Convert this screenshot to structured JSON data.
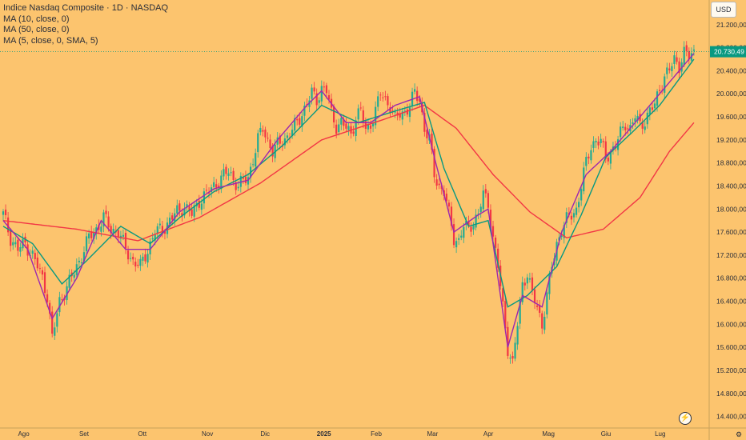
{
  "legend": {
    "title": "Indice Nasdaq Composite · 1D · NASDAQ",
    "ma1": "MA (10, close, 0)",
    "ma2": "MA (50, close, 0)",
    "ma3": "MA (5, close, 0, SMA, 5)"
  },
  "currency": "USD",
  "colors": {
    "background": "#fcc46e",
    "up": "#22ab94",
    "down": "#f23645",
    "ma10": "#089981",
    "ma50": "#f23645",
    "ma5": "#9c27b0",
    "price_label": "#089981"
  },
  "icons": {
    "settings": "gear-icon",
    "logo": "tradingview-logo-icon"
  },
  "chart_data": {
    "type": "candlestick",
    "title": "Indice Nasdaq Composite · 1D · NASDAQ",
    "currency": "USD",
    "y_ticks": [
      "21.200,00",
      "20.800,00",
      "20.400,00",
      "20.000,00",
      "19.600,00",
      "19.200,00",
      "18.800,00",
      "18.400,00",
      "18.000,00",
      "17.600,00",
      "17.200,00",
      "16.800,00",
      "16.400,00",
      "16.000,00",
      "15.600,00",
      "15.200,00",
      "14.800,00",
      "14.400,00"
    ],
    "x_ticks": [
      "Ago",
      "Set",
      "Ott",
      "Nov",
      "Dic",
      "2025",
      "Feb",
      "Mar",
      "Apr",
      "Mag",
      "Giu",
      "Lug"
    ],
    "last_price_label": "20.730,49",
    "last_price": 20730.49,
    "ylim": [
      14200,
      21350
    ],
    "series_close": [
      [
        0,
        17900
      ],
      [
        3,
        17500
      ],
      [
        6,
        17300
      ],
      [
        9,
        17400
      ],
      [
        12,
        17200
      ],
      [
        16,
        16800
      ],
      [
        18,
        16500
      ],
      [
        20,
        15750
      ],
      [
        23,
        16400
      ],
      [
        26,
        16650
      ],
      [
        29,
        16900
      ],
      [
        32,
        17200
      ],
      [
        35,
        17500
      ],
      [
        38,
        17650
      ],
      [
        41,
        17850
      ],
      [
        44,
        17650
      ],
      [
        47,
        17600
      ],
      [
        50,
        17300
      ],
      [
        53,
        17100
      ],
      [
        56,
        17000
      ],
      [
        59,
        17300
      ],
      [
        62,
        17600
      ],
      [
        65,
        17650
      ],
      [
        68,
        17800
      ],
      [
        71,
        17950
      ],
      [
        74,
        18050
      ],
      [
        77,
        17900
      ],
      [
        80,
        18150
      ],
      [
        84,
        18300
      ],
      [
        88,
        18500
      ],
      [
        92,
        18650
      ],
      [
        96,
        18400
      ],
      [
        100,
        18550
      ],
      [
        104,
        19200
      ],
      [
        106,
        19400
      ],
      [
        110,
        19000
      ],
      [
        113,
        19150
      ],
      [
        117,
        19300
      ],
      [
        120,
        19500
      ],
      [
        123,
        19750
      ],
      [
        126,
        20000
      ],
      [
        128,
        19900
      ],
      [
        130,
        20100
      ],
      [
        132,
        20050
      ],
      [
        134,
        19650
      ],
      [
        136,
        19450
      ],
      [
        138,
        19500
      ],
      [
        140,
        19400
      ],
      [
        142,
        19300
      ],
      [
        144,
        19600
      ],
      [
        146,
        19700
      ],
      [
        148,
        19350
      ],
      [
        150,
        19500
      ],
      [
        152,
        19700
      ],
      [
        154,
        20000
      ],
      [
        156,
        19900
      ],
      [
        158,
        19800
      ],
      [
        160,
        19550
      ],
      [
        162,
        19650
      ],
      [
        164,
        19700
      ],
      [
        166,
        19800
      ],
      [
        168,
        20000
      ],
      [
        170,
        19900
      ],
      [
        172,
        19400
      ],
      [
        174,
        19200
      ],
      [
        176,
        18600
      ],
      [
        178,
        18400
      ],
      [
        180,
        18300
      ],
      [
        182,
        17900
      ],
      [
        184,
        17500
      ],
      [
        186,
        17450
      ],
      [
        188,
        17700
      ],
      [
        190,
        17650
      ],
      [
        192,
        17800
      ],
      [
        194,
        17900
      ],
      [
        196,
        18250
      ],
      [
        198,
        18100
      ],
      [
        200,
        17500
      ],
      [
        202,
        17000
      ],
      [
        204,
        16300
      ],
      [
        206,
        15600
      ],
      [
        208,
        15300
      ],
      [
        210,
        16000
      ],
      [
        212,
        16700
      ],
      [
        214,
        16900
      ],
      [
        216,
        16500
      ],
      [
        218,
        16300
      ],
      [
        220,
        16000
      ],
      [
        222,
        16500
      ],
      [
        224,
        17000
      ],
      [
        226,
        17400
      ],
      [
        228,
        17650
      ],
      [
        230,
        17800
      ],
      [
        232,
        17900
      ],
      [
        234,
        18000
      ],
      [
        236,
        18400
      ],
      [
        238,
        18800
      ],
      [
        240,
        19100
      ],
      [
        242,
        19200
      ],
      [
        244,
        19150
      ],
      [
        246,
        18900
      ],
      [
        248,
        19000
      ],
      [
        250,
        19100
      ],
      [
        252,
        19300
      ],
      [
        254,
        19500
      ],
      [
        256,
        19400
      ],
      [
        258,
        19600
      ],
      [
        260,
        19450
      ],
      [
        262,
        19550
      ],
      [
        264,
        19700
      ],
      [
        266,
        19800
      ],
      [
        268,
        20100
      ],
      [
        270,
        20300
      ],
      [
        272,
        20400
      ],
      [
        274,
        20600
      ],
      [
        276,
        20500
      ],
      [
        278,
        20700
      ],
      [
        280,
        20650
      ],
      [
        282,
        20730
      ]
    ],
    "ma10": [
      [
        0,
        17700
      ],
      [
        12,
        17400
      ],
      [
        24,
        16700
      ],
      [
        34,
        17100
      ],
      [
        48,
        17700
      ],
      [
        60,
        17400
      ],
      [
        72,
        17850
      ],
      [
        86,
        18300
      ],
      [
        100,
        18600
      ],
      [
        114,
        19100
      ],
      [
        130,
        19800
      ],
      [
        145,
        19500
      ],
      [
        160,
        19700
      ],
      [
        172,
        19850
      ],
      [
        180,
        18700
      ],
      [
        190,
        17700
      ],
      [
        198,
        17800
      ],
      [
        206,
        16300
      ],
      [
        214,
        16500
      ],
      [
        226,
        17000
      ],
      [
        236,
        17900
      ],
      [
        246,
        18900
      ],
      [
        256,
        19300
      ],
      [
        268,
        19800
      ],
      [
        282,
        20600
      ]
    ],
    "ma50": [
      [
        0,
        17800
      ],
      [
        30,
        17650
      ],
      [
        55,
        17450
      ],
      [
        80,
        17850
      ],
      [
        105,
        18450
      ],
      [
        130,
        19200
      ],
      [
        155,
        19550
      ],
      [
        172,
        19800
      ],
      [
        185,
        19400
      ],
      [
        200,
        18600
      ],
      [
        215,
        17950
      ],
      [
        230,
        17500
      ],
      [
        245,
        17650
      ],
      [
        260,
        18200
      ],
      [
        272,
        19000
      ],
      [
        282,
        19500
      ]
    ],
    "ma5": [
      [
        0,
        17800
      ],
      [
        10,
        17300
      ],
      [
        20,
        16100
      ],
      [
        30,
        16800
      ],
      [
        40,
        17800
      ],
      [
        50,
        17300
      ],
      [
        60,
        17300
      ],
      [
        72,
        17950
      ],
      [
        86,
        18350
      ],
      [
        100,
        18500
      ],
      [
        112,
        19200
      ],
      [
        124,
        19800
      ],
      [
        130,
        20050
      ],
      [
        140,
        19500
      ],
      [
        150,
        19500
      ],
      [
        160,
        19800
      ],
      [
        170,
        19950
      ],
      [
        176,
        18900
      ],
      [
        184,
        17600
      ],
      [
        194,
        17900
      ],
      [
        198,
        18000
      ],
      [
        206,
        15600
      ],
      [
        212,
        16500
      ],
      [
        220,
        16300
      ],
      [
        228,
        17600
      ],
      [
        238,
        18600
      ],
      [
        248,
        19000
      ],
      [
        258,
        19500
      ],
      [
        270,
        20100
      ],
      [
        282,
        20700
      ]
    ]
  }
}
